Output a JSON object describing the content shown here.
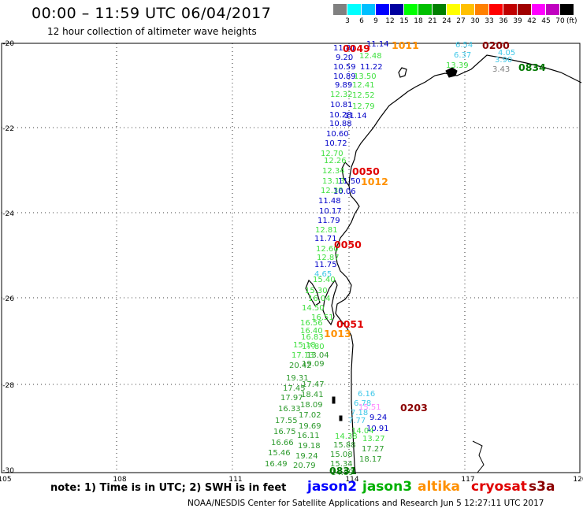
{
  "title": "00:00 – 11:59 UTC 06/04/2017",
  "subtitle": "12 hour collection of altimeter wave heights",
  "colorbar": {
    "colors": [
      "#808080",
      "#00ffff",
      "#00c0ff",
      "#0000ff",
      "#0000a0",
      "#00ff00",
      "#00c000",
      "#008000",
      "#ffff00",
      "#ffc000",
      "#ff8000",
      "#ff0000",
      "#c00000",
      "#a00000",
      "#ff00ff",
      "#c000c0",
      "#000000"
    ],
    "labels": [
      "3",
      "6",
      "9",
      "12",
      "15",
      "18",
      "21",
      "24",
      "27",
      "30",
      "33",
      "36",
      "39",
      "42",
      "45",
      "70"
    ],
    "unit": "(ft)"
  },
  "map": {
    "lat_labels": [
      "-20",
      "-22",
      "-24",
      "-26",
      "-28",
      "-30"
    ],
    "lon_labels": [
      "105",
      "108",
      "111",
      "114",
      "117",
      "120"
    ]
  },
  "times": [
    {
      "text": "0049",
      "color": "#e00000"
    },
    {
      "text": "1011",
      "color": "#ff9000"
    },
    {
      "text": "0200",
      "color": "#8b0000"
    },
    {
      "text": "0834",
      "color": "#007800"
    },
    {
      "text": "0050",
      "color": "#e00000"
    },
    {
      "text": "1012",
      "color": "#ff9000"
    },
    {
      "text": "0050",
      "color": "#e00000"
    },
    {
      "text": "0051",
      "color": "#e00000"
    },
    {
      "text": "1013",
      "color": "#ff9000"
    },
    {
      "text": "0203",
      "color": "#8b0000"
    },
    {
      "text": "0831",
      "color": "#007800"
    }
  ],
  "wave_labels": [
    {
      "text": "11.81",
      "color": "#0000c8"
    },
    {
      "text": "11.14",
      "color": "#0000c8"
    },
    {
      "text": "9.20",
      "color": "#0000c8"
    },
    {
      "text": "12.48",
      "color": "#40e040"
    },
    {
      "text": "10.59",
      "color": "#0000c8"
    },
    {
      "text": "11.22",
      "color": "#0000c8"
    },
    {
      "text": "10.89",
      "color": "#0000c8"
    },
    {
      "text": "13.50",
      "color": "#40e040"
    },
    {
      "text": "9.89",
      "color": "#0000c8"
    },
    {
      "text": "12.41",
      "color": "#40e040"
    },
    {
      "text": "12.32",
      "color": "#40e040"
    },
    {
      "text": "12.52",
      "color": "#40e040"
    },
    {
      "text": "10.81",
      "color": "#0000c8"
    },
    {
      "text": "12.79",
      "color": "#40e040"
    },
    {
      "text": "10.28",
      "color": "#0000c8"
    },
    {
      "text": "11.14",
      "color": "#0000c8"
    },
    {
      "text": "10.88",
      "color": "#0000c8"
    },
    {
      "text": "10.60",
      "color": "#0000c8"
    },
    {
      "text": "10.72",
      "color": "#0000c8"
    },
    {
      "text": "12.70",
      "color": "#40e040"
    },
    {
      "text": "12.26",
      "color": "#40e040"
    },
    {
      "text": "12.34",
      "color": "#40e040"
    },
    {
      "text": "13.13",
      "color": "#40e040"
    },
    {
      "text": "11.50",
      "color": "#0000c8"
    },
    {
      "text": "12.38",
      "color": "#40e040"
    },
    {
      "text": "10.06",
      "color": "#0000c8"
    },
    {
      "text": "11.48",
      "color": "#0000c8"
    },
    {
      "text": "10.17",
      "color": "#0000c8"
    },
    {
      "text": "11.79",
      "color": "#0000c8"
    },
    {
      "text": "12.81",
      "color": "#40e040"
    },
    {
      "text": "11.71",
      "color": "#0000c8"
    },
    {
      "text": "12.60",
      "color": "#40e040"
    },
    {
      "text": "12.87",
      "color": "#40e040"
    },
    {
      "text": "11.75",
      "color": "#0000c8"
    },
    {
      "text": "4.65",
      "color": "#40c8e8"
    },
    {
      "text": "15.40",
      "color": "#40e040"
    },
    {
      "text": "15.30",
      "color": "#40e040"
    },
    {
      "text": "16.04",
      "color": "#40e040"
    },
    {
      "text": "14.50",
      "color": "#40e040"
    },
    {
      "text": "16.51",
      "color": "#40e040"
    },
    {
      "text": "16.56",
      "color": "#40e040"
    },
    {
      "text": "16.40",
      "color": "#40e040"
    },
    {
      "text": "16.83",
      "color": "#40e040"
    },
    {
      "text": "15.18",
      "color": "#40e040"
    },
    {
      "text": "17.80",
      "color": "#40e040"
    },
    {
      "text": "17.13",
      "color": "#40e040"
    },
    {
      "text": "13.04",
      "color": "#2c9a2c"
    },
    {
      "text": "20.42",
      "color": "#2c9a2c"
    },
    {
      "text": "19.09",
      "color": "#2c9a2c"
    },
    {
      "text": "19.31",
      "color": "#2c9a2c"
    },
    {
      "text": "17.47",
      "color": "#2c9a2c"
    },
    {
      "text": "17.45",
      "color": "#2c9a2c"
    },
    {
      "text": "18.41",
      "color": "#2c9a2c"
    },
    {
      "text": "17.97",
      "color": "#2c9a2c"
    },
    {
      "text": "18.09",
      "color": "#2c9a2c"
    },
    {
      "text": "16.33",
      "color": "#2c9a2c"
    },
    {
      "text": "17.02",
      "color": "#2c9a2c"
    },
    {
      "text": "17.55",
      "color": "#2c9a2c"
    },
    {
      "text": "19.69",
      "color": "#2c9a2c"
    },
    {
      "text": "16.75",
      "color": "#2c9a2c"
    },
    {
      "text": "16.11",
      "color": "#2c9a2c"
    },
    {
      "text": "16.66",
      "color": "#2c9a2c"
    },
    {
      "text": "19.18",
      "color": "#2c9a2c"
    },
    {
      "text": "15.46",
      "color": "#2c9a2c"
    },
    {
      "text": "19.24",
      "color": "#2c9a2c"
    },
    {
      "text": "16.49",
      "color": "#2c9a2c"
    },
    {
      "text": "20.79",
      "color": "#2c9a2c"
    },
    {
      "text": "6.16",
      "color": "#40c8e8"
    },
    {
      "text": "6.78",
      "color": "#40c8e8"
    },
    {
      "text": "15.51",
      "color": "#ff88ff"
    },
    {
      "text": "7.18",
      "color": "#40c8e8"
    },
    {
      "text": "9.24",
      "color": "#0000c8"
    },
    {
      "text": "7.77",
      "color": "#40c8e8"
    },
    {
      "text": "10.91",
      "color": "#0000c8"
    },
    {
      "text": "14.04",
      "color": "#40e040"
    },
    {
      "text": "14.38",
      "color": "#40e040"
    },
    {
      "text": "13.27",
      "color": "#40e040"
    },
    {
      "text": "15.88",
      "color": "#2c9a2c"
    },
    {
      "text": "17.27",
      "color": "#2c9a2c"
    },
    {
      "text": "15.08",
      "color": "#2c9a2c"
    },
    {
      "text": "18.17",
      "color": "#2c9a2c"
    },
    {
      "text": "15.34",
      "color": "#2c9a2c"
    },
    {
      "text": "14.89",
      "color": "#2c9a2c"
    },
    {
      "text": "6.54",
      "color": "#40c8e8"
    },
    {
      "text": "4.05",
      "color": "#40c8e8"
    },
    {
      "text": "6.37",
      "color": "#40c8e8"
    },
    {
      "text": "3.90",
      "color": "#40c8e8"
    },
    {
      "text": "13.39",
      "color": "#40e040"
    },
    {
      "text": "3.43",
      "color": "#808080"
    }
  ],
  "note": "note: 1) Time is in UTC; 2) SWH is in feet",
  "satellites": [
    {
      "name": "jason2",
      "color": "#0000ff"
    },
    {
      "name": "jason3",
      "color": "#00b000"
    },
    {
      "name": "altika",
      "color": "#ff9000"
    },
    {
      "name": "cryosat",
      "color": "#e00000"
    },
    {
      "name": "s3a",
      "color": "#8b0000"
    }
  ],
  "footer": "NOAA/NESDIS Center for Satellite Applications and Research    Jun  5 12:27:11 UTC 2017"
}
